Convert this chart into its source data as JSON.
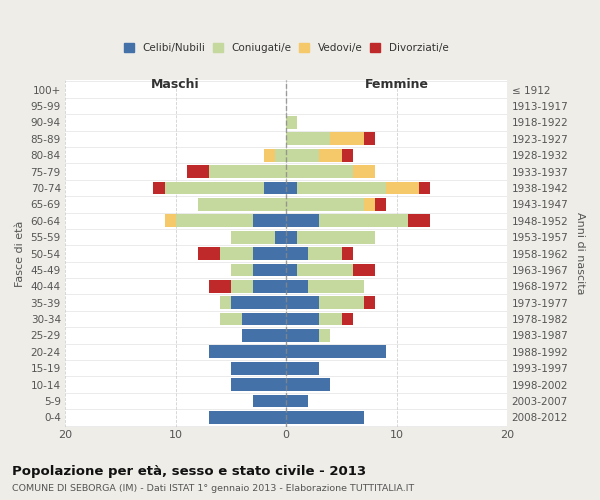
{
  "age_groups": [
    "0-4",
    "5-9",
    "10-14",
    "15-19",
    "20-24",
    "25-29",
    "30-34",
    "35-39",
    "40-44",
    "45-49",
    "50-54",
    "55-59",
    "60-64",
    "65-69",
    "70-74",
    "75-79",
    "80-84",
    "85-89",
    "90-94",
    "95-99",
    "100+"
  ],
  "birth_years": [
    "2008-2012",
    "2003-2007",
    "1998-2002",
    "1993-1997",
    "1988-1992",
    "1983-1987",
    "1978-1982",
    "1973-1977",
    "1968-1972",
    "1963-1967",
    "1958-1962",
    "1953-1957",
    "1948-1952",
    "1943-1947",
    "1938-1942",
    "1933-1937",
    "1928-1932",
    "1923-1927",
    "1918-1922",
    "1913-1917",
    "≤ 1912"
  ],
  "male": {
    "celibi": [
      7,
      3,
      5,
      5,
      7,
      4,
      4,
      5,
      3,
      3,
      3,
      1,
      3,
      0,
      2,
      0,
      0,
      0,
      0,
      0,
      0
    ],
    "coniugati": [
      0,
      0,
      0,
      0,
      0,
      0,
      2,
      1,
      2,
      2,
      3,
      4,
      7,
      8,
      9,
      7,
      1,
      0,
      0,
      0,
      0
    ],
    "vedovi": [
      0,
      0,
      0,
      0,
      0,
      0,
      0,
      0,
      0,
      0,
      0,
      0,
      1,
      0,
      0,
      0,
      1,
      0,
      0,
      0,
      0
    ],
    "divorziati": [
      0,
      0,
      0,
      0,
      0,
      0,
      0,
      0,
      2,
      0,
      2,
      0,
      0,
      0,
      1,
      2,
      0,
      0,
      0,
      0,
      0
    ]
  },
  "female": {
    "nubili": [
      7,
      2,
      4,
      3,
      9,
      3,
      3,
      3,
      2,
      1,
      2,
      1,
      3,
      0,
      1,
      0,
      0,
      0,
      0,
      0,
      0
    ],
    "coniugate": [
      0,
      0,
      0,
      0,
      0,
      1,
      2,
      4,
      5,
      5,
      3,
      7,
      8,
      7,
      8,
      6,
      3,
      4,
      1,
      0,
      0
    ],
    "vedove": [
      0,
      0,
      0,
      0,
      0,
      0,
      0,
      0,
      0,
      0,
      0,
      0,
      0,
      1,
      3,
      2,
      2,
      3,
      0,
      0,
      0
    ],
    "divorziate": [
      0,
      0,
      0,
      0,
      0,
      0,
      1,
      1,
      0,
      2,
      1,
      0,
      2,
      1,
      1,
      0,
      1,
      1,
      0,
      0,
      0
    ]
  },
  "colors": {
    "celibi": "#4472a8",
    "coniugati": "#c5d89d",
    "vedovi": "#f5c96a",
    "divorziati": "#c0292a"
  },
  "xlim": 20,
  "title": "Popolazione per età, sesso e stato civile - 2013",
  "subtitle": "COMUNE DI SEBORGA (IM) - Dati ISTAT 1° gennaio 2013 - Elaborazione TUTTITALIA.IT",
  "ylabel_left": "Fasce di età",
  "ylabel_right": "Anni di nascita",
  "xlabel_left": "Maschi",
  "xlabel_right": "Femmine",
  "bg_color": "#eeede8",
  "plot_bg": "#ffffff"
}
